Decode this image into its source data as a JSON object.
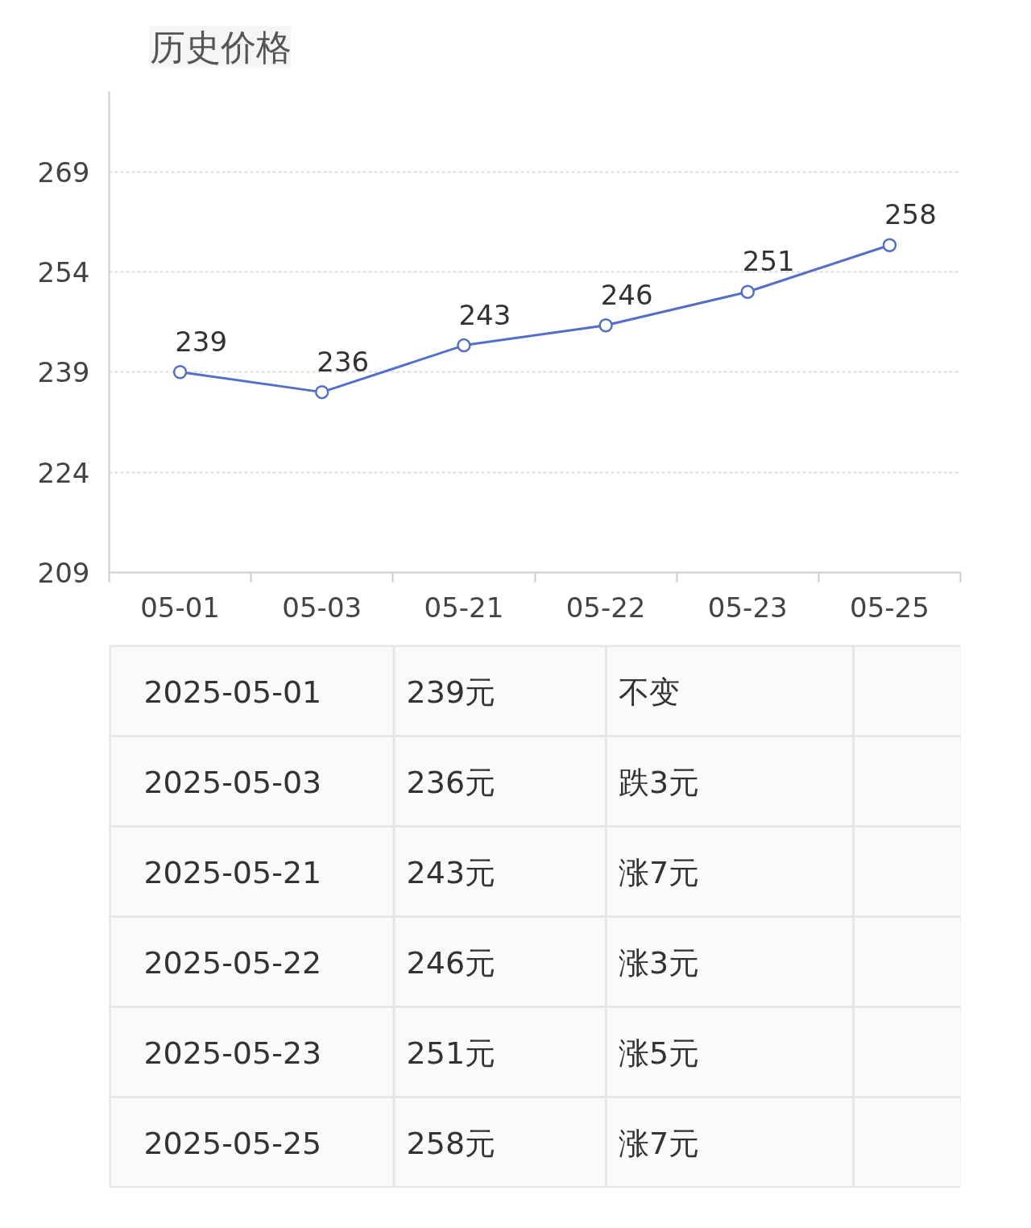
{
  "chart_data": [
    {
      "type": "line",
      "title": "历史价格",
      "categories": [
        "05-01",
        "05-03",
        "05-21",
        "05-22",
        "05-23",
        "05-25"
      ],
      "series": [
        {
          "color": "#5470c6",
          "values": [
            239,
            236,
            243,
            246,
            251,
            258
          ]
        }
      ],
      "ylim": [
        209,
        281
      ],
      "yticks": [
        209,
        224,
        239,
        254,
        269
      ],
      "grid": "y",
      "marker": "circle",
      "line_style": "solid",
      "data_labels": true
    },
    {
      "type": "other",
      "annotations": [
        "2025-05-01",
        "239元",
        "不变",
        "2025-05-03",
        "236元",
        "跌3元",
        "2025-05-21",
        "243元",
        "涨7元",
        "2025-05-22",
        "246元",
        "涨3元",
        "2025-05-23",
        "251元",
        "涨5元",
        "2025-05-25",
        "258元",
        "涨7元"
      ]
    }
  ]
}
